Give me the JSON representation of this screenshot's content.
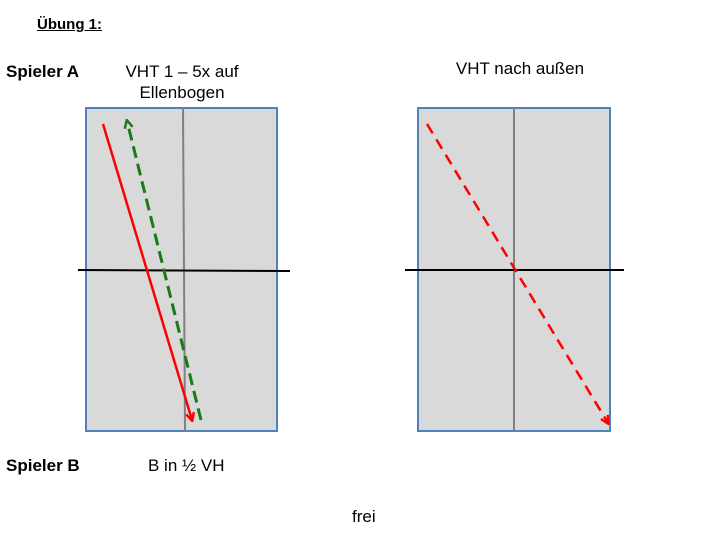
{
  "title": "Übung 1:",
  "labels": {
    "player_a": "Spieler A",
    "player_b": "Spieler B"
  },
  "captions": {
    "left_top": "VHT 1 – 5x auf Ellenbogen",
    "right_top": "VHT nach außen",
    "left_bottom": "B in ½ VH",
    "bottom_center": "frei"
  },
  "colors": {
    "court_fill": "#d9d9d9",
    "court_border": "#4f81bd",
    "center_line": "#808080",
    "net": "#000000",
    "arrow_red": "#ff0000",
    "arrow_green": "#1a7a1a"
  }
}
